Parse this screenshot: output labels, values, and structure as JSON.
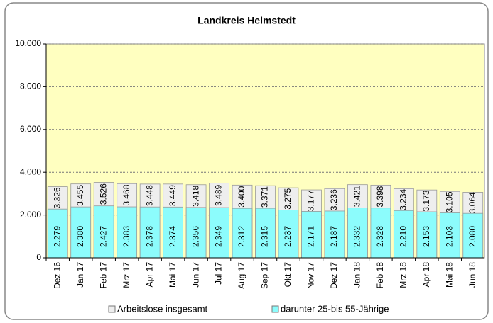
{
  "chart_data": {
    "type": "bar",
    "title": "Landkreis Helmstedt",
    "categories": [
      "Dez 16",
      "Jan 17",
      "Feb 17",
      "Mrz 17",
      "Apr 17",
      "Mai 17",
      "Jun 17",
      "Jul 17",
      "Aug 17",
      "Sep 17",
      "Okt 17",
      "Nov 17",
      "Dez 17",
      "Jan 18",
      "Feb 18",
      "Mrz 18",
      "Apr 18",
      "Mai 18",
      "Jun 18"
    ],
    "series": [
      {
        "name": "Arbeitslose insgesamt",
        "color": "#eeeeee",
        "values": [
          3326,
          3455,
          3526,
          3468,
          3448,
          3449,
          3418,
          3489,
          3400,
          3371,
          3275,
          3177,
          3236,
          3421,
          3398,
          3234,
          3173,
          3105,
          3064
        ],
        "value_labels": [
          "3.326",
          "3.455",
          "3.526",
          "3.468",
          "3.448",
          "3.449",
          "3.418",
          "3.489",
          "3.400",
          "3.371",
          "3.275",
          "3.177",
          "3.236",
          "3.421",
          "3.398",
          "3.234",
          "3.173",
          "3.105",
          "3.064"
        ]
      },
      {
        "name": "darunter 25-bis 55-Jährige",
        "color": "#8cfcfc",
        "values": [
          2279,
          2380,
          2427,
          2383,
          2378,
          2374,
          2356,
          2349,
          2312,
          2315,
          2237,
          2171,
          2187,
          2332,
          2328,
          2210,
          2153,
          2103,
          2080
        ],
        "value_labels": [
          "2.279",
          "2.380",
          "2.427",
          "2.383",
          "2.378",
          "2.374",
          "2.356",
          "2.349",
          "2.312",
          "2.315",
          "2.237",
          "2.171",
          "2.187",
          "2.332",
          "2.328",
          "2.210",
          "2.153",
          "2.103",
          "2.080"
        ]
      }
    ],
    "ylim": [
      0,
      10000
    ],
    "yticks": [
      0,
      {
        "value": 2000,
        "label": "2.000"
      },
      {
        "value": 4000,
        "label": "4.000"
      },
      {
        "value": 6000,
        "label": "6.000"
      },
      {
        "value": 8000,
        "label": "8.000"
      },
      {
        "value": 10000,
        "label": "10.000"
      }
    ],
    "grid": true,
    "plot_background": "#ffffc0",
    "legend": "bottom"
  }
}
